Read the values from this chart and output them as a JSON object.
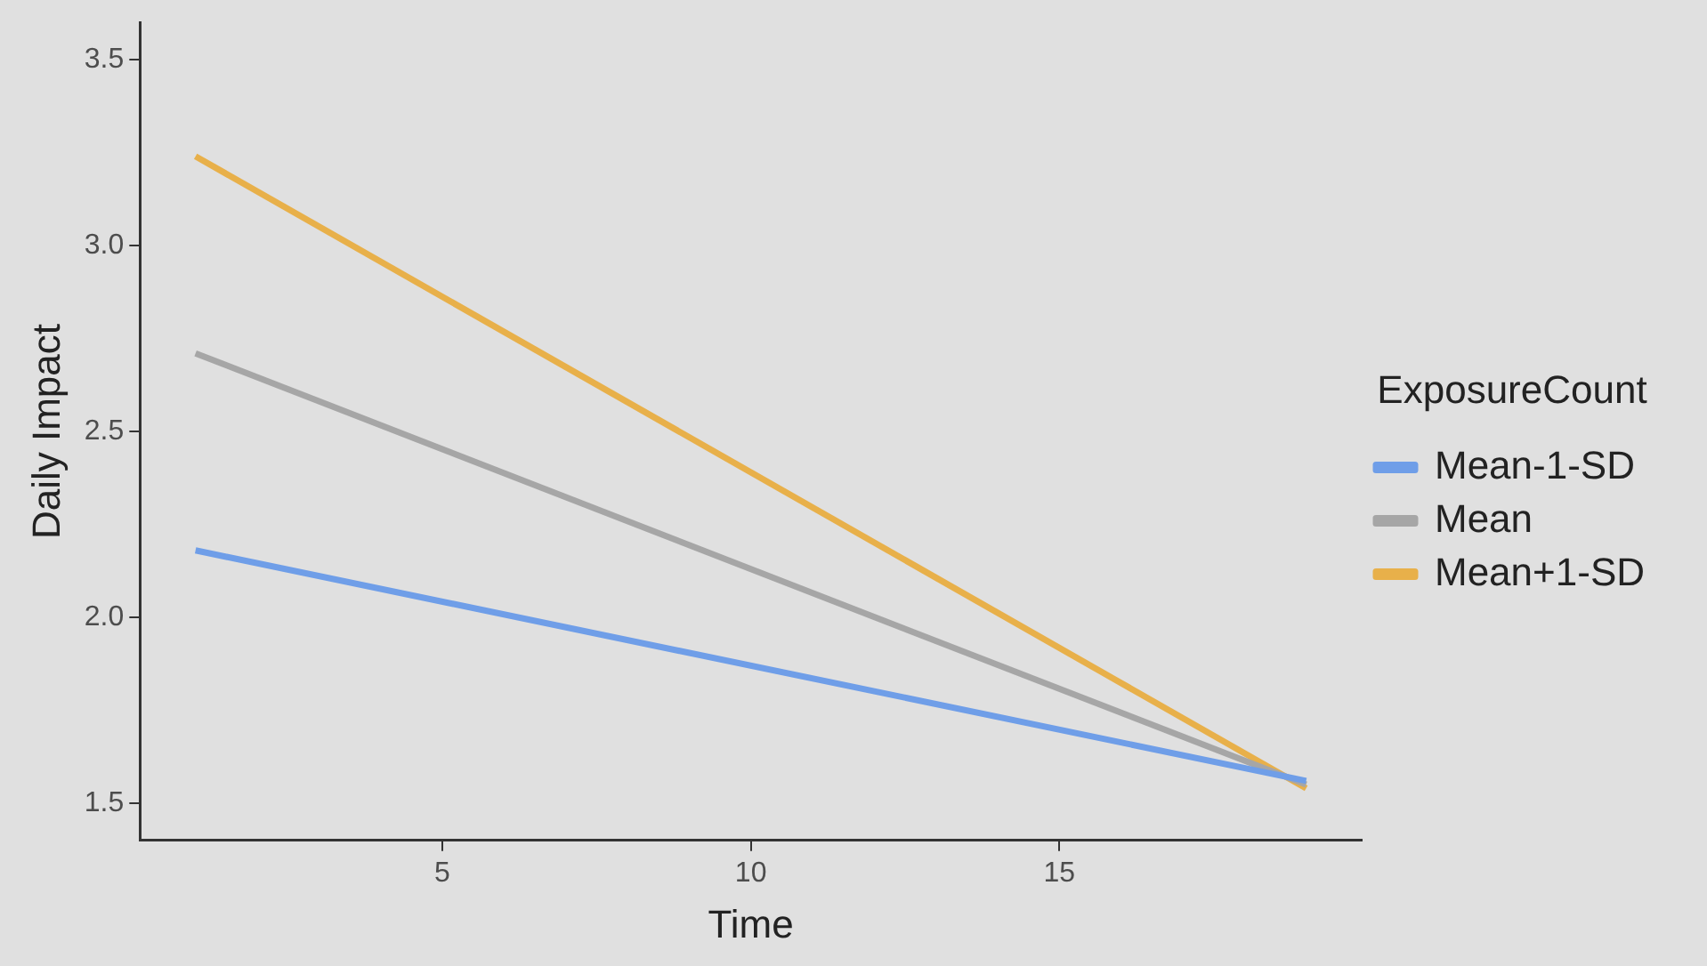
{
  "chart_data": {
    "type": "line",
    "xlabel": "Time",
    "ylabel": "Daily Impact",
    "legend_title": "ExposureCount",
    "legend": "right",
    "x": [
      1,
      19
    ],
    "series": [
      {
        "name": "Mean-1-SD",
        "color": "#6f9ee8",
        "values": [
          2.18,
          1.56
        ]
      },
      {
        "name": "Mean",
        "color": "#a6a6a6",
        "values": [
          2.71,
          1.55
        ]
      },
      {
        "name": "Mean+1-SD",
        "color": "#e8b04a",
        "values": [
          3.24,
          1.54
        ]
      }
    ],
    "xlim": [
      0.1,
      19.9
    ],
    "xticks": [
      5,
      10,
      15
    ],
    "ylim": [
      1.4,
      3.6
    ],
    "yticks": [
      1.5,
      {
        "value": 2,
        "label": "2.0"
      },
      2.5,
      {
        "value": 3,
        "label": "3.0"
      },
      3.5
    ],
    "grid": false,
    "marker": "none",
    "line_style": "solid"
  }
}
